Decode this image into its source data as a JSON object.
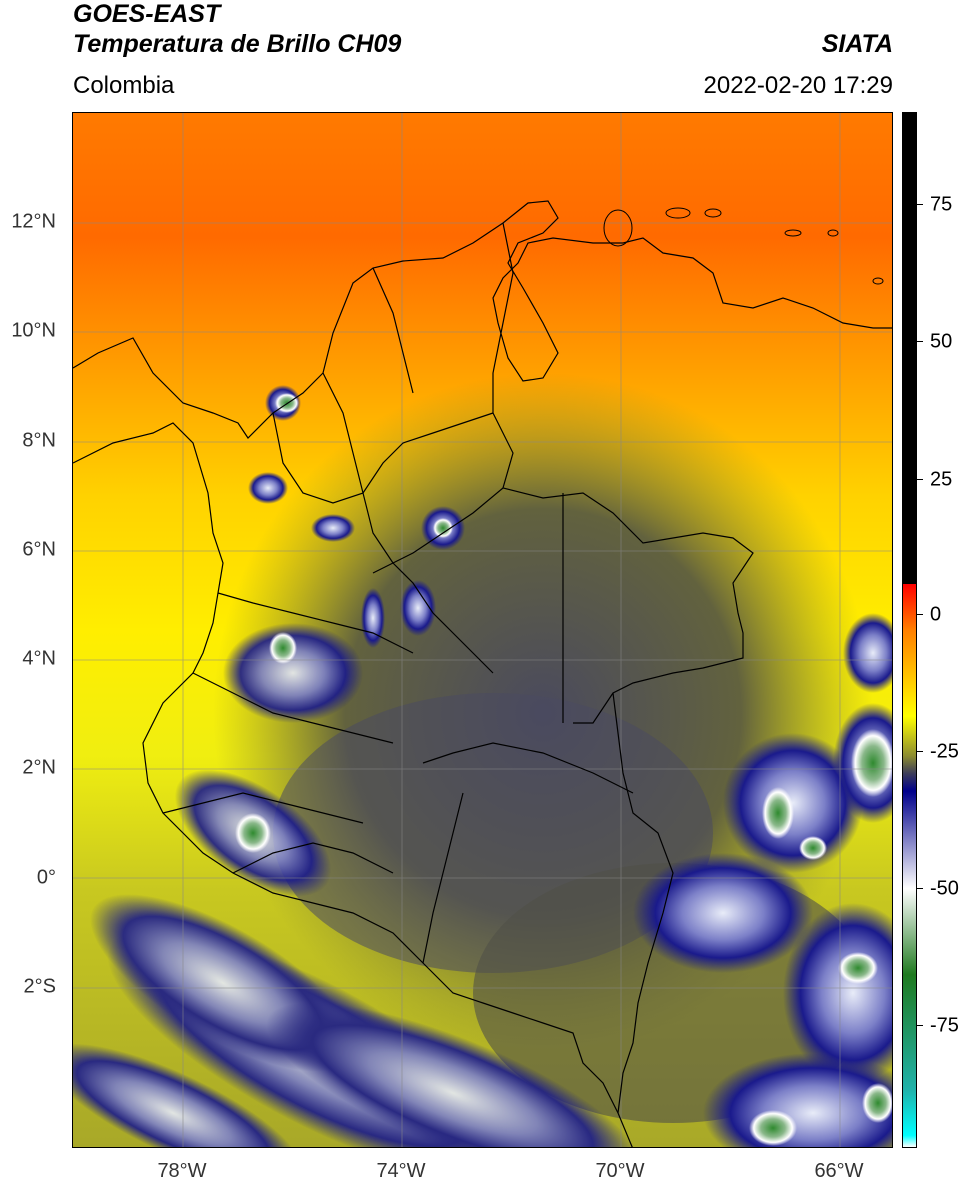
{
  "header": {
    "satellite": "GOES-EAST",
    "product": "Temperatura de Brillo CH09",
    "brand": "SIATA",
    "region": "Colombia",
    "datetime": "2022-02-20 17:29"
  },
  "map": {
    "lat_labels": [
      "12°N",
      "10°N",
      "8°N",
      "6°N",
      "4°N",
      "2°N",
      "0°",
      "2°S"
    ],
    "lon_labels": [
      "78°W",
      "74°W",
      "70°W",
      "66°W"
    ],
    "features": [
      "coastline",
      "country-borders",
      "department-borders",
      "gridlines"
    ],
    "cloud_cores_visible": true
  },
  "colorbar": {
    "labels": [
      "75",
      "50",
      "25",
      "0",
      "-25",
      "-50",
      "-75"
    ],
    "stops": [
      {
        "value": 90,
        "color": "#000000"
      },
      {
        "value": 8,
        "color": "#000000"
      },
      {
        "value": 8,
        "color": "#ff0000"
      },
      {
        "value": 0,
        "color": "#ff7f00"
      },
      {
        "value": -15,
        "color": "#ffff00"
      },
      {
        "value": -22,
        "color": "#8b8b30"
      },
      {
        "value": -25,
        "color": "#3c3c5a"
      },
      {
        "value": -28,
        "color": "#00008b"
      },
      {
        "value": -45,
        "color": "#ffffff"
      },
      {
        "value": -60,
        "color": "#1f7a1f"
      },
      {
        "value": -80,
        "color": "#20b2aa"
      },
      {
        "value": -88,
        "color": "#00ffff"
      },
      {
        "value": -90,
        "color": "#ffffff"
      }
    ]
  }
}
